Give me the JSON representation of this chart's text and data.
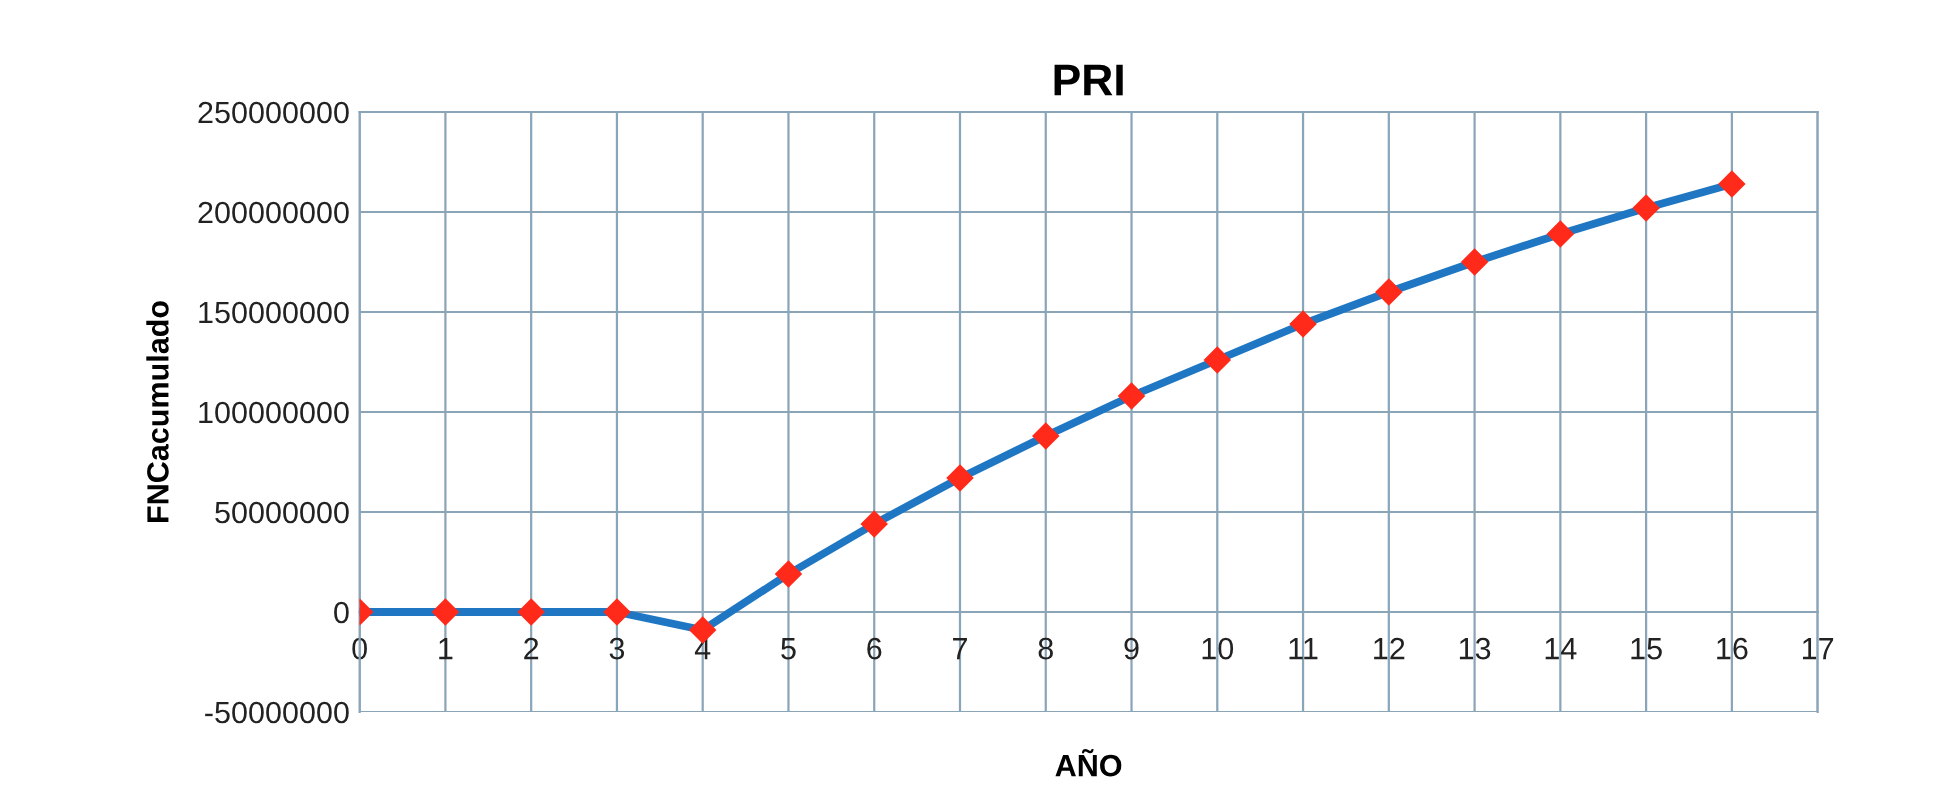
{
  "chart_data": {
    "type": "line",
    "title": "PRI",
    "xlabel": "AÑO",
    "ylabel": "FNCacumulado",
    "x": [
      0,
      1,
      2,
      3,
      4,
      5,
      6,
      7,
      8,
      9,
      10,
      11,
      12,
      13,
      14,
      15,
      16
    ],
    "series": [
      {
        "color": "#1f77c4",
        "colors": [
          "#ff2a1a",
          "#ff2a1a",
          "#ff2a1a",
          "#ff2a1a",
          "#ff2a1a",
          "#ff2a1a",
          "#ff2a1a",
          "#ff2a1a",
          "#ff2a1a",
          "#ff2a1a",
          "#ff2a1a",
          "#ff2a1a",
          "#ff2a1a",
          "#ff2a1a",
          "#ff2a1a",
          "#ff2a1a",
          "#ff2a1a"
        ],
        "values": [
          0,
          0,
          0,
          0,
          -9000000,
          19000000,
          44000000,
          67000000,
          88000000,
          108000000,
          126000000,
          144000000,
          160000000,
          175000000,
          189000000,
          202000000,
          214000000
        ]
      }
    ],
    "xlim": [
      0,
      17
    ],
    "xticks": [
      0,
      1,
      2,
      3,
      4,
      5,
      6,
      7,
      8,
      9,
      10,
      11,
      12,
      13,
      14,
      15,
      16,
      17
    ],
    "ylim": [
      -50000000,
      250000000
    ],
    "yticks": [
      -50000000,
      0,
      50000000,
      100000000,
      150000000,
      200000000,
      250000000
    ],
    "grid": true,
    "marker": "diamond",
    "line_style": "solid",
    "legend": false
  }
}
